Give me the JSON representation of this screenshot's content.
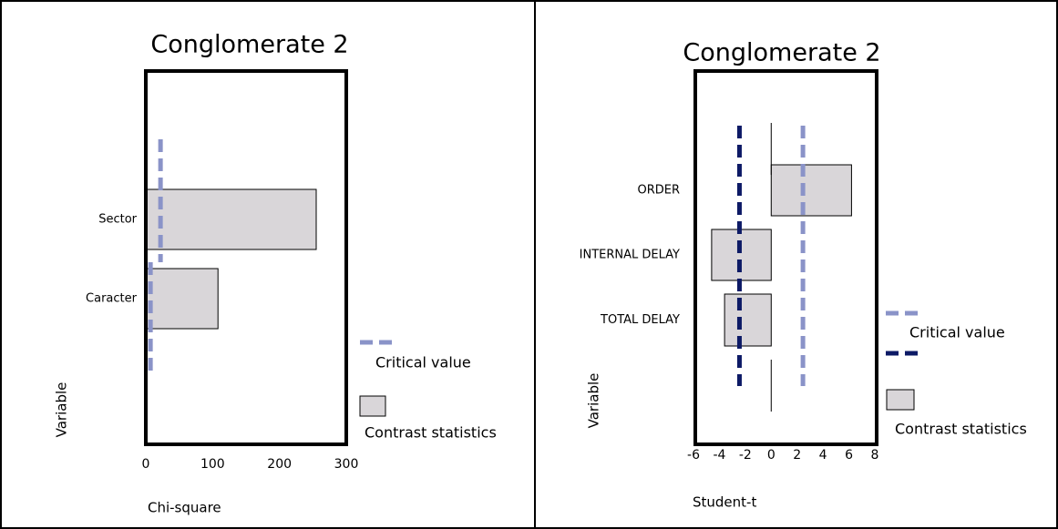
{
  "chart_data": [
    {
      "type": "hbar",
      "title": "Conglomerate 2",
      "categories": [
        "Sector",
        "Caracter"
      ],
      "series": [
        {
          "name": "Contrast statistics",
          "color": "#d9d6d9",
          "values": [
            255,
            108
          ]
        }
      ],
      "critical": {
        "name": "Critical value",
        "color": "#8a93c8",
        "values": [
          22,
          7
        ]
      },
      "xlim": [
        0,
        300
      ],
      "xticks": [
        0,
        100,
        200,
        300
      ],
      "xlabel": "Chi-square",
      "ylabel": "Variable"
    },
    {
      "type": "hbar",
      "title": "Conglomerate 2",
      "categories": [
        "ORDER",
        "INTERNAL DELAY",
        "TOTAL DELAY"
      ],
      "series": [
        {
          "name": "Contrast statistics",
          "color": "#d9d6d9",
          "values": [
            6.2,
            -4.6,
            -3.6
          ]
        }
      ],
      "critical": {
        "name": "Critical value",
        "lines": [
          {
            "value": 2.45,
            "color": "#8a93c8"
          },
          {
            "value": -2.45,
            "color": "#0d1a66"
          }
        ]
      },
      "xlim": [
        -6,
        8
      ],
      "xticks": [
        -6,
        -4,
        -2,
        0,
        2,
        4,
        6,
        8
      ],
      "xlabel": "Student-t",
      "ylabel": "Variable"
    }
  ]
}
